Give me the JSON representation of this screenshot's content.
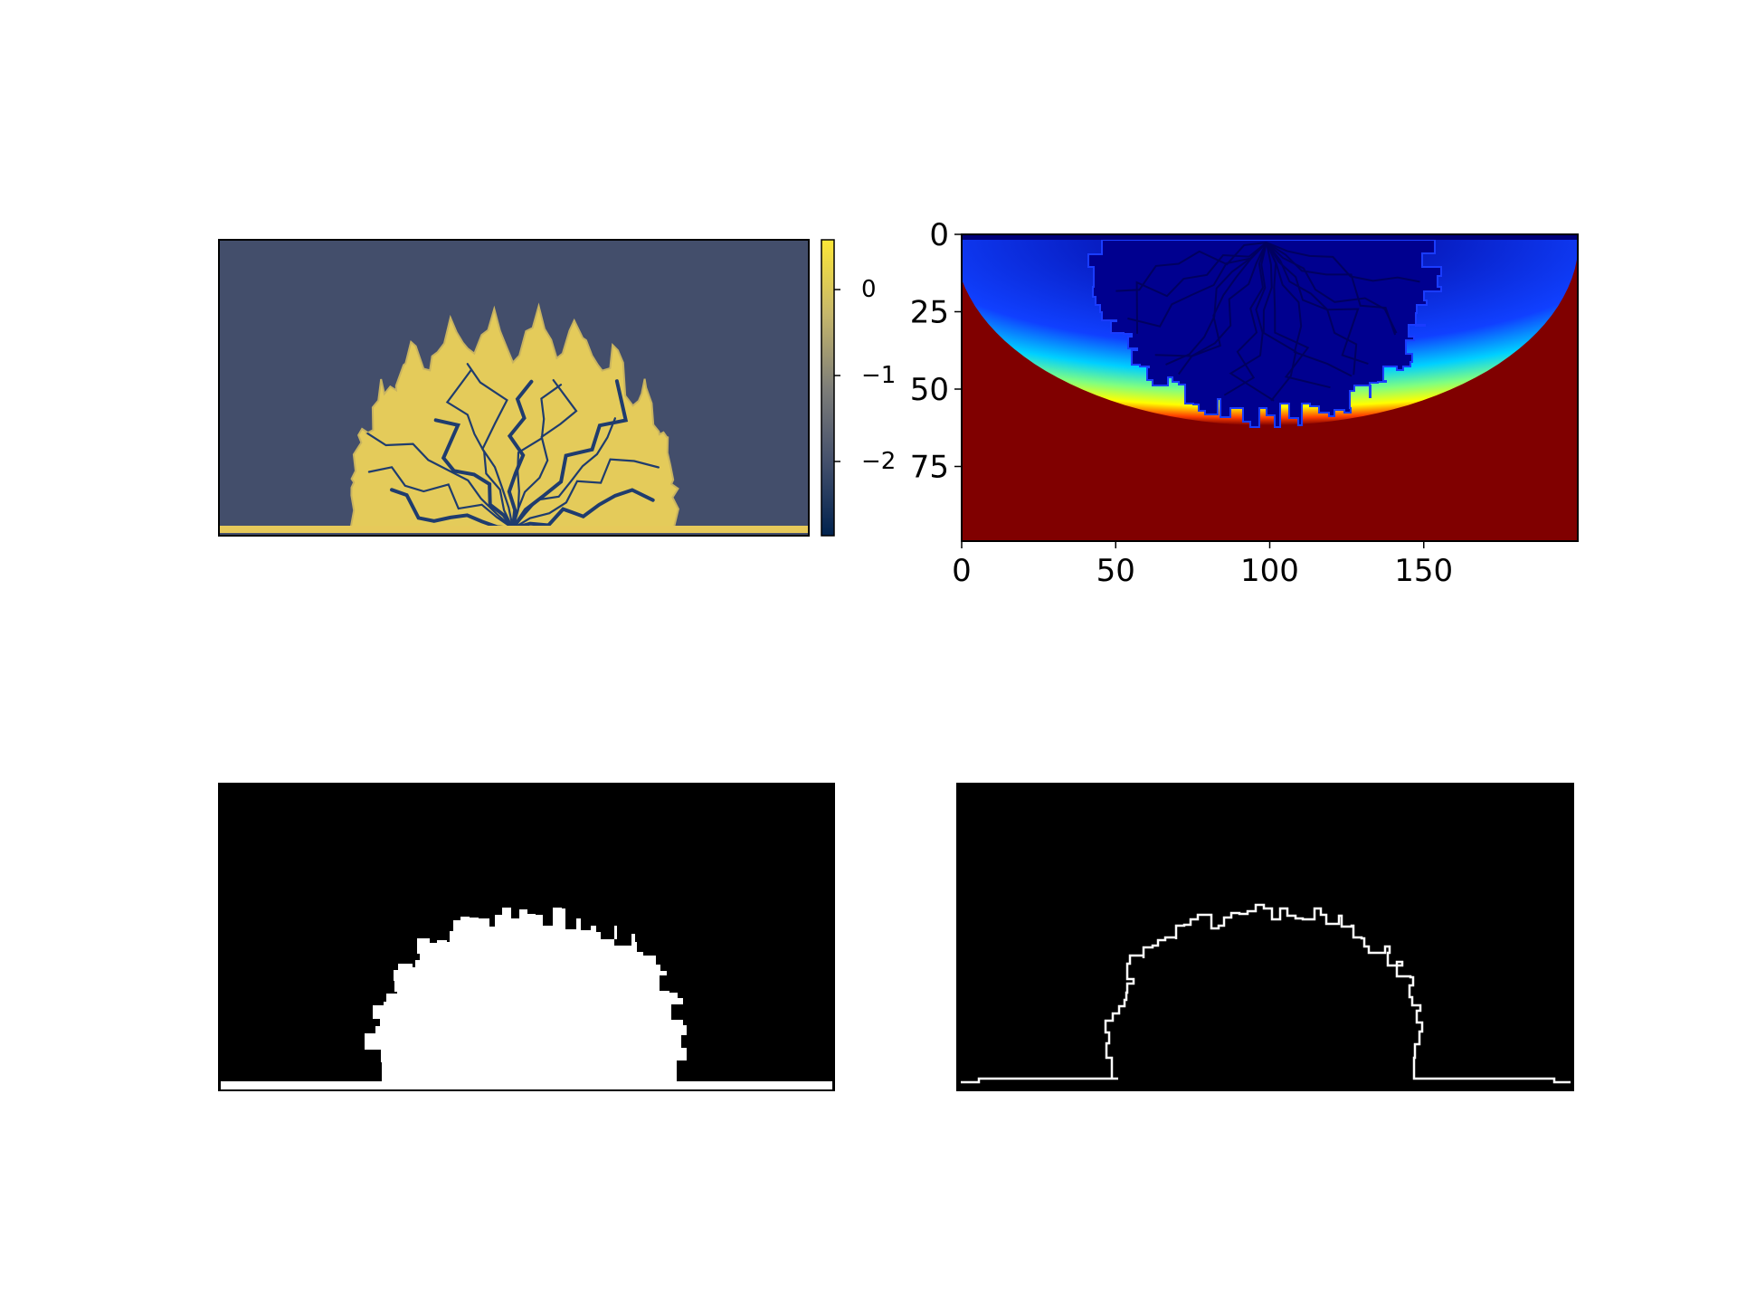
{
  "figure": {
    "layout": "2x2 grid of image panels",
    "background": "#ffffff"
  },
  "chart_data": [
    {
      "type": "heatmap",
      "panel": "top-left",
      "title": "",
      "axes_visible": false,
      "colormap": "cividis",
      "colorbar": {
        "placement": "right",
        "ticks": [
          "0",
          "−1",
          "−2"
        ]
      },
      "colors": {
        "background": "#434e6b",
        "colony": "#e4cb5a",
        "channels": "#1f3c6e",
        "baseline": "#e6c95a"
      }
    },
    {
      "type": "heatmap",
      "panel": "top-right",
      "title": "",
      "colormap": "jet",
      "x_ticks": [
        "0",
        "50",
        "100",
        "150"
      ],
      "y_ticks": [
        "0",
        "25",
        "50",
        "75"
      ],
      "xlim": [
        0,
        200
      ],
      "ylim": [
        97,
        0
      ],
      "colors": {
        "background": "#800000",
        "interior": "#00008f",
        "mid": "#00b0ff",
        "edge": "#ffff00"
      }
    },
    {
      "type": "heatmap",
      "panel": "bottom-left",
      "title": "",
      "axes_visible": false,
      "colormap": "binary mask",
      "colors": {
        "background": "#000000",
        "foreground": "#ffffff"
      }
    },
    {
      "type": "heatmap",
      "panel": "bottom-right",
      "title": "",
      "axes_visible": false,
      "colormap": "binary contour",
      "colors": {
        "background": "#000000",
        "foreground": "#ffffff"
      }
    }
  ]
}
